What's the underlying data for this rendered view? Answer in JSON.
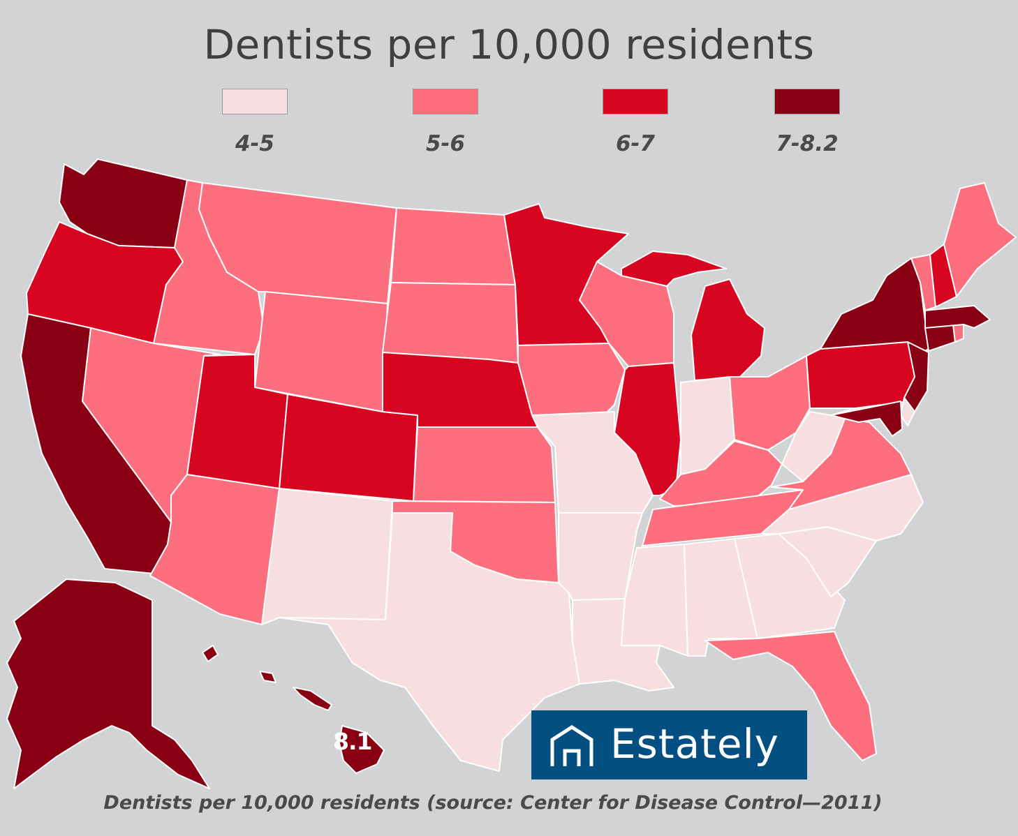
{
  "title": "Dentists per 10,000 residents",
  "legend": [
    {
      "label": "4-5",
      "color": "#f7dfe1"
    },
    {
      "label": "5-6",
      "color": "#fd6f7f"
    },
    {
      "label": "6-7",
      "color": "#d80520"
    },
    {
      "label": "7-8.2",
      "color": "#890014"
    }
  ],
  "states": {
    "WA": "7-8.2",
    "OR": "6-7",
    "CA": "7-8.2",
    "ID": "5-6",
    "NV": "5-6",
    "MT": "5-6",
    "WY": "5-6",
    "UT": "6-7",
    "AZ": "5-6",
    "CO": "6-7",
    "NM": "4-5",
    "ND": "5-6",
    "SD": "5-6",
    "NE": "6-7",
    "KS": "5-6",
    "OK": "5-6",
    "TX": "4-5",
    "MN": "6-7",
    "IA": "5-6",
    "MO": "4-5",
    "AR": "4-5",
    "LA": "4-5",
    "WI": "5-6",
    "IL": "6-7",
    "MI": "6-7",
    "IN": "4-5",
    "OH": "5-6",
    "KY": "5-6",
    "TN": "5-6",
    "MS": "4-5",
    "AL": "4-5",
    "GA": "4-5",
    "FL": "5-6",
    "SC": "4-5",
    "NC": "4-5",
    "VA": "5-6",
    "WV": "4-5",
    "PA": "6-7",
    "NY": "7-8.2",
    "NJ": "7-8.2",
    "DE": "4-5",
    "MD": "7-8.2",
    "CT": "7-8.2",
    "RI": "5-6",
    "MA": "7-8.2",
    "VT": "5-6",
    "NH": "6-7",
    "ME": "5-6",
    "AK": "7-8.2",
    "HI": "7-8.2"
  },
  "hawaii_label": "8.1",
  "logo": {
    "text": "Estately"
  },
  "caption": "Dentists per 10,000 residents (source: Center for Disease Control—2011)"
}
